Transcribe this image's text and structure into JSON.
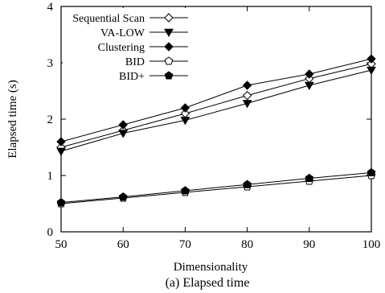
{
  "chart_data": {
    "type": "line",
    "caption": "(a) Elapsed time",
    "xlabel": "Dimensionality",
    "ylabel": "Elapsed time (s)",
    "x": [
      50,
      60,
      70,
      80,
      90,
      100
    ],
    "xlim": [
      50,
      100
    ],
    "ylim": [
      0,
      4
    ],
    "xticks": [
      "50",
      "60",
      "70",
      "80",
      "90",
      "100"
    ],
    "yticks": [
      "0",
      "1",
      "2",
      "3",
      "4"
    ],
    "grid": false,
    "legend_position": "top-left",
    "series": [
      {
        "name": "Sequential Scan",
        "marker": "diamond-open",
        "values": [
          1.5,
          1.8,
          2.1,
          2.42,
          2.72,
          2.98
        ]
      },
      {
        "name": "VA-LOW",
        "marker": "triangle-down-filled",
        "values": [
          1.43,
          1.75,
          1.98,
          2.28,
          2.6,
          2.87
        ]
      },
      {
        "name": "Clustering",
        "marker": "diamond-filled",
        "values": [
          1.6,
          1.9,
          2.2,
          2.6,
          2.8,
          3.07
        ]
      },
      {
        "name": "BID",
        "marker": "pentagon-open",
        "values": [
          0.5,
          0.6,
          0.7,
          0.8,
          0.9,
          1.0
        ]
      },
      {
        "name": "BID+",
        "marker": "pentagon-filled",
        "values": [
          0.52,
          0.62,
          0.73,
          0.84,
          0.95,
          1.05
        ]
      }
    ]
  }
}
